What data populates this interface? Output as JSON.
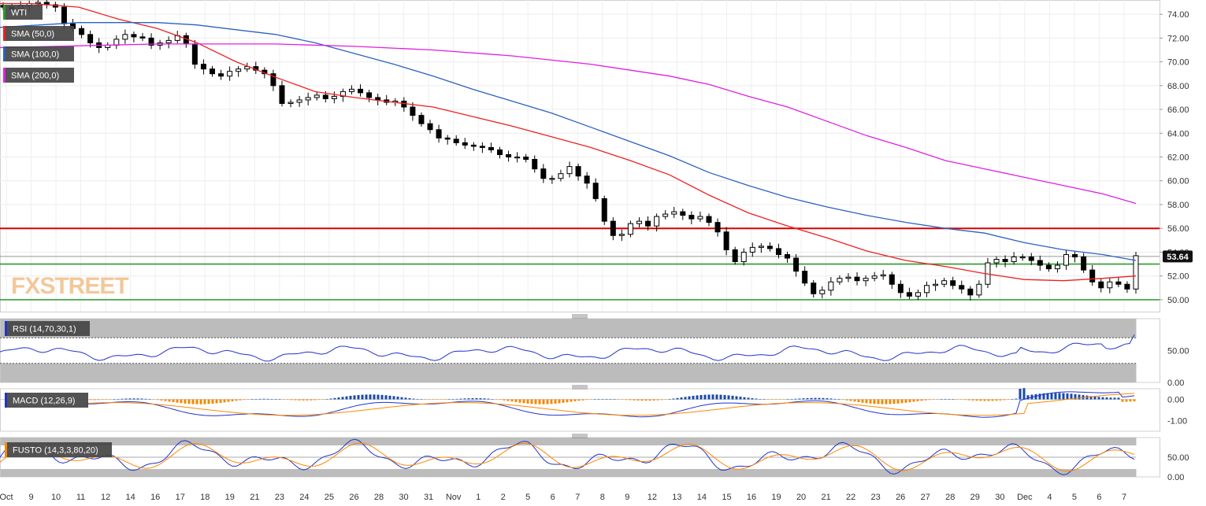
{
  "chart_data": {
    "type": "candlestick",
    "symbol": "WTI",
    "last_price_label": "53.64",
    "watermark": "FXSTREET",
    "colors": {
      "sma50": "#ee2020",
      "sma100": "#2a62c0",
      "sma200": "#e020e0",
      "resistance": "#d80000",
      "support": "#2a9a2a",
      "macd_pos": "#1a4aa8",
      "macd_neg": "#f28a00",
      "line_blue": "#2233cc",
      "line_orange": "#ff8800"
    },
    "price_axis": {
      "range": [
        49,
        75.2
      ],
      "ticks": [
        "74.00",
        "72.00",
        "70.00",
        "68.00",
        "66.00",
        "64.00",
        "62.00",
        "60.00",
        "58.00",
        "56.00",
        "54.00",
        "52.00",
        "50.00"
      ]
    },
    "levels": {
      "resistance": 56.0,
      "support_upper": 53.0,
      "support_lower": 50.0,
      "current": 53.64
    },
    "x_axis_labels": [
      "Oct",
      "9",
      "10",
      "11",
      "12",
      "14",
      "16",
      "17",
      "18",
      "19",
      "21",
      "23",
      "24",
      "25",
      "26",
      "28",
      "30",
      "31",
      "Nov",
      "1",
      "2",
      "5",
      "6",
      "7",
      "8",
      "9",
      "12",
      "13",
      "14",
      "15",
      "16",
      "19",
      "20",
      "21",
      "22",
      "23",
      "26",
      "27",
      "28",
      "29",
      "30",
      "Dec",
      "4",
      "5",
      "6",
      "7"
    ],
    "series": [
      {
        "name": "WTI",
        "kind": "candles",
        "closes": [
          74.6,
          74.4,
          74.7,
          74.9,
          75.0,
          74.8,
          74.6,
          73.2,
          72.8,
          72.3,
          71.6,
          71.2,
          71.4,
          71.9,
          72.3,
          72.1,
          72.0,
          71.4,
          71.6,
          71.8,
          72.2,
          71.5,
          69.8,
          69.4,
          69.0,
          68.8,
          69.2,
          69.4,
          69.6,
          69.3,
          69.0,
          68.0,
          66.5,
          66.6,
          66.8,
          67.0,
          67.2,
          66.9,
          67.1,
          67.5,
          67.7,
          67.4,
          67.0,
          66.8,
          66.6,
          66.7,
          66.2,
          65.5,
          64.8,
          64.3,
          63.6,
          63.5,
          63.2,
          63.0,
          62.9,
          62.8,
          62.6,
          62.2,
          62.0,
          62.0,
          61.8,
          61.0,
          60.2,
          60.2,
          60.6,
          61.2,
          60.4,
          59.8,
          58.5,
          56.6,
          55.4,
          55.5,
          56.4,
          56.6,
          56.2,
          57.0,
          57.2,
          57.4,
          57.1,
          56.8,
          57.0,
          56.5,
          55.7,
          54.2,
          53.2,
          54.0,
          54.4,
          54.5,
          54.3,
          53.8,
          53.5,
          52.4,
          51.4,
          50.5,
          50.8,
          51.5,
          51.8,
          51.9,
          51.6,
          51.8,
          52.0,
          52.1,
          51.3,
          50.6,
          50.3,
          50.6,
          51.2,
          51.3,
          51.6,
          51.2,
          50.9,
          50.4,
          51.3,
          53.1,
          53.4,
          53.2,
          53.6,
          53.6,
          53.3,
          52.9,
          52.6,
          52.9,
          53.8,
          53.6,
          52.5,
          51.5,
          51.0,
          51.5,
          51.3,
          50.9,
          53.7
        ]
      },
      {
        "name": "SMA (50,0)",
        "kind": "line",
        "values": [
          [
            0,
            74.9
          ],
          [
            40,
            74.9
          ],
          [
            100,
            74.6
          ],
          [
            150,
            73.6
          ],
          [
            200,
            72.8
          ],
          [
            250,
            71.6
          ],
          [
            300,
            70.0
          ],
          [
            350,
            68.7
          ],
          [
            400,
            67.5
          ],
          [
            450,
            67.0
          ],
          [
            500,
            66.6
          ],
          [
            550,
            66.2
          ],
          [
            600,
            65.4
          ],
          [
            650,
            64.6
          ],
          [
            700,
            63.7
          ],
          [
            750,
            62.8
          ],
          [
            800,
            61.7
          ],
          [
            850,
            60.5
          ],
          [
            900,
            58.8
          ],
          [
            950,
            57.3
          ],
          [
            1000,
            56.2
          ],
          [
            1050,
            55.2
          ],
          [
            1100,
            54.1
          ],
          [
            1150,
            53.3
          ],
          [
            1200,
            52.8
          ],
          [
            1250,
            52.2
          ],
          [
            1300,
            51.7
          ],
          [
            1350,
            51.6
          ],
          [
            1400,
            51.8
          ],
          [
            1442,
            52.0
          ]
        ]
      },
      {
        "name": "SMA (100,0)",
        "kind": "line",
        "values": [
          [
            0,
            72.9
          ],
          [
            100,
            73.3
          ],
          [
            200,
            73.3
          ],
          [
            250,
            73.1
          ],
          [
            300,
            72.7
          ],
          [
            350,
            72.3
          ],
          [
            400,
            71.6
          ],
          [
            450,
            70.7
          ],
          [
            500,
            69.8
          ],
          [
            550,
            68.8
          ],
          [
            600,
            67.7
          ],
          [
            650,
            66.7
          ],
          [
            700,
            65.7
          ],
          [
            750,
            64.5
          ],
          [
            800,
            63.3
          ],
          [
            850,
            62.1
          ],
          [
            900,
            60.7
          ],
          [
            950,
            59.6
          ],
          [
            1000,
            58.6
          ],
          [
            1050,
            57.8
          ],
          [
            1100,
            57.1
          ],
          [
            1150,
            56.5
          ],
          [
            1200,
            56.0
          ],
          [
            1250,
            55.6
          ],
          [
            1300,
            54.8
          ],
          [
            1350,
            54.2
          ],
          [
            1400,
            53.8
          ],
          [
            1442,
            53.3
          ]
        ]
      },
      {
        "name": "SMA (200,0)",
        "kind": "line",
        "values": [
          [
            0,
            71.2
          ],
          [
            200,
            71.5
          ],
          [
            350,
            71.5
          ],
          [
            450,
            71.3
          ],
          [
            550,
            71.0
          ],
          [
            650,
            70.5
          ],
          [
            750,
            69.8
          ],
          [
            850,
            68.8
          ],
          [
            900,
            68.1
          ],
          [
            950,
            67.1
          ],
          [
            1000,
            66.2
          ],
          [
            1050,
            65.0
          ],
          [
            1100,
            63.8
          ],
          [
            1150,
            62.8
          ],
          [
            1200,
            61.7
          ],
          [
            1250,
            61.0
          ],
          [
            1300,
            60.3
          ],
          [
            1350,
            59.6
          ],
          [
            1400,
            58.9
          ],
          [
            1442,
            58.1
          ]
        ]
      }
    ],
    "indicators": [
      {
        "name": "RSI (14,70,30,1)",
        "ticks": [
          "50.00",
          "0.00"
        ],
        "range": [
          0,
          100
        ],
        "bands": [
          30,
          70
        ]
      },
      {
        "name": "MACD (12,26,9)",
        "ticks": [
          "0.00",
          "-1.00"
        ],
        "range": [
          -1.5,
          0.5
        ]
      },
      {
        "name": "FUSTO (14,3,3,80,20)",
        "ticks": [
          "50.00",
          "0.00"
        ],
        "range": [
          0,
          100
        ],
        "bands": [
          20,
          80
        ]
      }
    ]
  }
}
